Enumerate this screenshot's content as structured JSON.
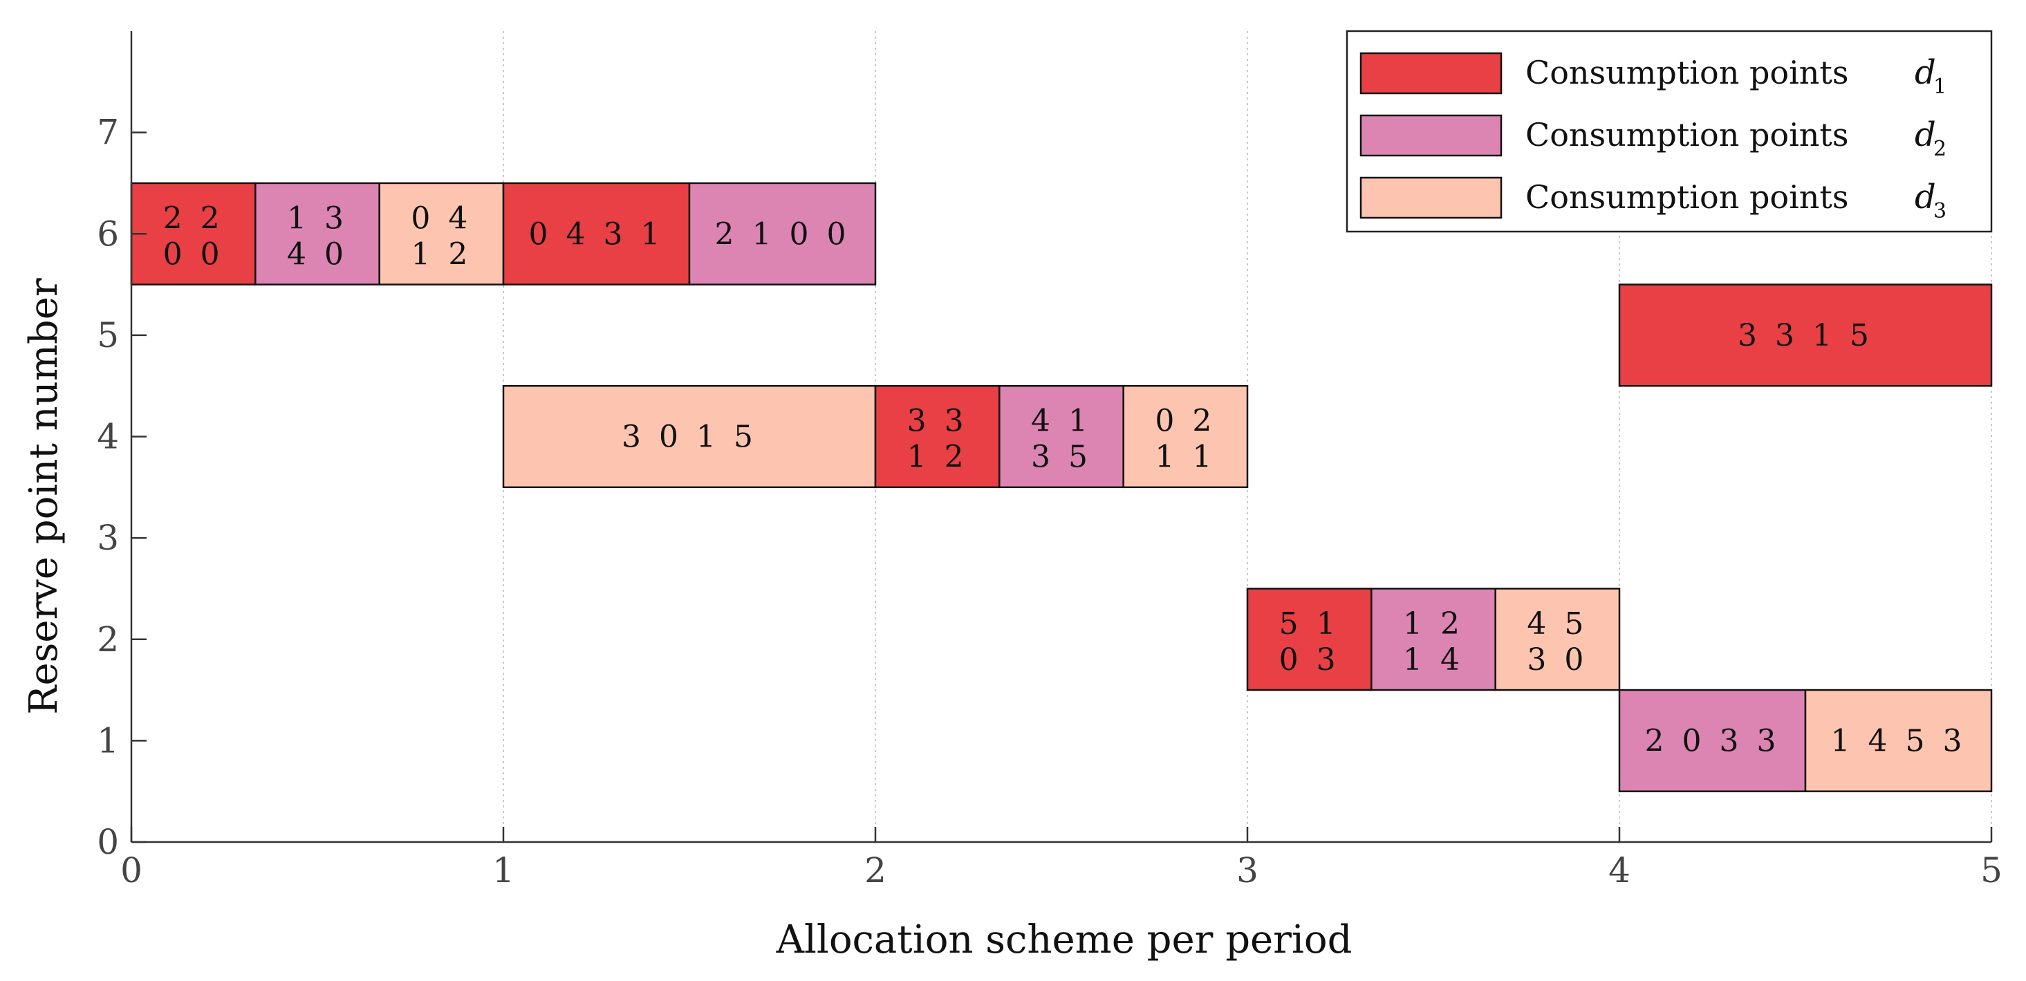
{
  "chart_data": {
    "type": "gantt",
    "title": "",
    "xlabel": "Allocation scheme per period",
    "ylabel": "Reserve point number",
    "xlim": [
      0,
      5
    ],
    "ylim": [
      0,
      8
    ],
    "xticks": [
      0,
      1,
      2,
      3,
      4,
      5
    ],
    "yticks": [
      0,
      1,
      2,
      3,
      4,
      5,
      6,
      7
    ],
    "grid": "vertical-dotted",
    "legend_position": "top-right",
    "legend": [
      {
        "label": "Consumption points",
        "symbol": "d",
        "sub": "1",
        "color": "#e84045"
      },
      {
        "label": "Consumption points",
        "symbol": "d",
        "sub": "2",
        "color": "#dc85b3"
      },
      {
        "label": "Consumption points",
        "symbol": "d",
        "sub": "3",
        "color": "#fdc5b0"
      }
    ],
    "bars": [
      {
        "reserve": 6,
        "start": 0.0,
        "end": 0.3333,
        "series": 1,
        "lines": [
          "2 2",
          "0 0"
        ]
      },
      {
        "reserve": 6,
        "start": 0.3333,
        "end": 0.6667,
        "series": 2,
        "lines": [
          "1 3",
          "4 0"
        ]
      },
      {
        "reserve": 6,
        "start": 0.6667,
        "end": 1.0,
        "series": 3,
        "lines": [
          "0 4",
          "1 2"
        ]
      },
      {
        "reserve": 6,
        "start": 1.0,
        "end": 1.5,
        "series": 1,
        "lines": [
          "0 4 3 1"
        ]
      },
      {
        "reserve": 6,
        "start": 1.5,
        "end": 2.0,
        "series": 2,
        "lines": [
          "2 1 0 0"
        ]
      },
      {
        "reserve": 4,
        "start": 1.0,
        "end": 2.0,
        "series": 3,
        "lines": [
          "3 0 1 5"
        ]
      },
      {
        "reserve": 4,
        "start": 2.0,
        "end": 2.3333,
        "series": 1,
        "lines": [
          "3 3",
          "1 2"
        ]
      },
      {
        "reserve": 4,
        "start": 2.3333,
        "end": 2.6667,
        "series": 2,
        "lines": [
          "4 1",
          "3 5"
        ]
      },
      {
        "reserve": 4,
        "start": 2.6667,
        "end": 3.0,
        "series": 3,
        "lines": [
          "0 2",
          "1 1"
        ]
      },
      {
        "reserve": 2,
        "start": 3.0,
        "end": 3.3333,
        "series": 1,
        "lines": [
          "5 1",
          "0 3"
        ]
      },
      {
        "reserve": 2,
        "start": 3.3333,
        "end": 3.6667,
        "series": 2,
        "lines": [
          "1 2",
          "1 4"
        ]
      },
      {
        "reserve": 2,
        "start": 3.6667,
        "end": 4.0,
        "series": 3,
        "lines": [
          "4 5",
          "3 0"
        ]
      },
      {
        "reserve": 5,
        "start": 4.0,
        "end": 5.0,
        "series": 1,
        "lines": [
          "3 3 1 5"
        ]
      },
      {
        "reserve": 1,
        "start": 4.0,
        "end": 4.5,
        "series": 2,
        "lines": [
          "2 0 3 3"
        ]
      },
      {
        "reserve": 1,
        "start": 4.5,
        "end": 5.0,
        "series": 3,
        "lines": [
          "1 4 5 3"
        ]
      }
    ]
  }
}
